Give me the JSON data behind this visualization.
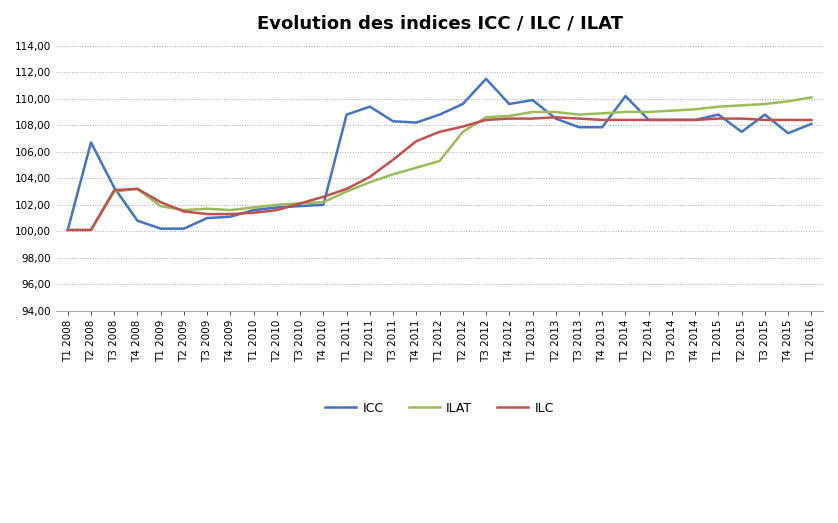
{
  "title": "Evolution des indices ICC / ILC / ILAT",
  "labels": [
    "T1 2008",
    "T2 2008",
    "T3 2008",
    "T4 2008",
    "T1 2009",
    "T2 2009",
    "T3 2009",
    "T4 2009",
    "T1 2010",
    "T2 2010",
    "T3 2010",
    "T4 2010",
    "T1 2011",
    "T2 2011",
    "T3 2011",
    "T4 2011",
    "T1 2012",
    "T2 2012",
    "T3 2012",
    "T4 2012",
    "T1 2013",
    "T2 2013",
    "T3 2013",
    "T4 2013",
    "T1 2014",
    "T2 2014",
    "T3 2014",
    "T4 2014",
    "T1 2015",
    "T2 2015",
    "T3 2015",
    "T4 2015",
    "T1 2016"
  ],
  "ICC": [
    100.1,
    106.7,
    103.3,
    100.8,
    100.2,
    100.2,
    101.0,
    101.1,
    101.6,
    101.8,
    101.9,
    102.0,
    108.8,
    109.4,
    108.3,
    108.2,
    108.8,
    109.6,
    111.5,
    109.6,
    109.9,
    108.5,
    107.85,
    107.85,
    110.2,
    108.4,
    108.4,
    108.4,
    108.8,
    107.5,
    108.8,
    107.4,
    108.1
  ],
  "ILAT": [
    100.1,
    100.1,
    103.0,
    103.2,
    101.9,
    101.6,
    101.7,
    101.6,
    101.8,
    102.0,
    102.1,
    102.2,
    103.0,
    103.7,
    104.3,
    104.8,
    105.3,
    107.5,
    108.6,
    108.7,
    109.0,
    109.0,
    108.8,
    108.9,
    109.0,
    109.0,
    109.1,
    109.2,
    109.4,
    109.5,
    109.6,
    109.8,
    110.1
  ],
  "ILC": [
    100.1,
    100.1,
    103.1,
    103.2,
    102.2,
    101.5,
    101.3,
    101.3,
    101.4,
    101.6,
    102.1,
    102.6,
    103.2,
    104.1,
    105.4,
    106.8,
    107.5,
    107.9,
    108.4,
    108.5,
    108.5,
    108.6,
    108.5,
    108.4,
    108.4,
    108.4,
    108.4,
    108.4,
    108.5,
    108.5,
    108.4,
    108.4,
    108.4
  ],
  "ICC_color": "#4472C4",
  "ILAT_color": "#9BBB59",
  "ILC_color": "#C0504D",
  "ylim": [
    94.0,
    114.0
  ],
  "yticks": [
    94.0,
    96.0,
    98.0,
    100.0,
    102.0,
    104.0,
    106.0,
    108.0,
    110.0,
    112.0,
    114.0
  ],
  "bg_color": "#FFFFFF",
  "grid_color": "#AAAAAA",
  "title_fontsize": 13,
  "tick_fontsize": 7.5,
  "legend_fontsize": 9
}
